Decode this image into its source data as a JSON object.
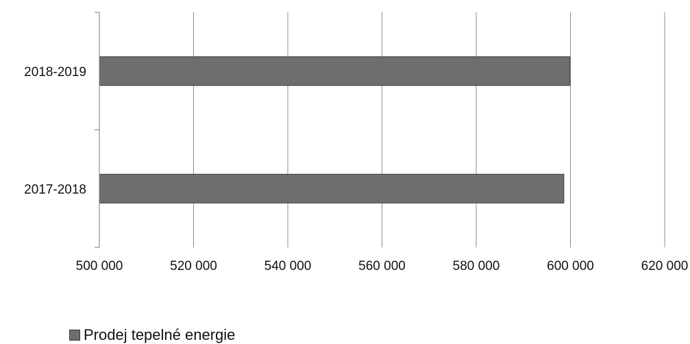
{
  "chart_data": {
    "type": "bar",
    "orientation": "horizontal",
    "title": "",
    "xlabel": "",
    "ylabel": "",
    "categories": [
      "2017-2018",
      "2018-2019"
    ],
    "series": [
      {
        "name": "Prodej tepelné energie",
        "values": [
          598600,
          599900
        ],
        "color": "#6e6e6e"
      }
    ],
    "xlim": [
      500000,
      620000
    ],
    "x_ticks": [
      500000,
      520000,
      540000,
      560000,
      580000,
      600000,
      620000
    ],
    "x_tick_labels": [
      "500 000",
      "520 000",
      "540 000",
      "560 000",
      "580 000",
      "600 000",
      "620 000"
    ],
    "grid": "vertical",
    "legend_position": "bottom-left"
  }
}
